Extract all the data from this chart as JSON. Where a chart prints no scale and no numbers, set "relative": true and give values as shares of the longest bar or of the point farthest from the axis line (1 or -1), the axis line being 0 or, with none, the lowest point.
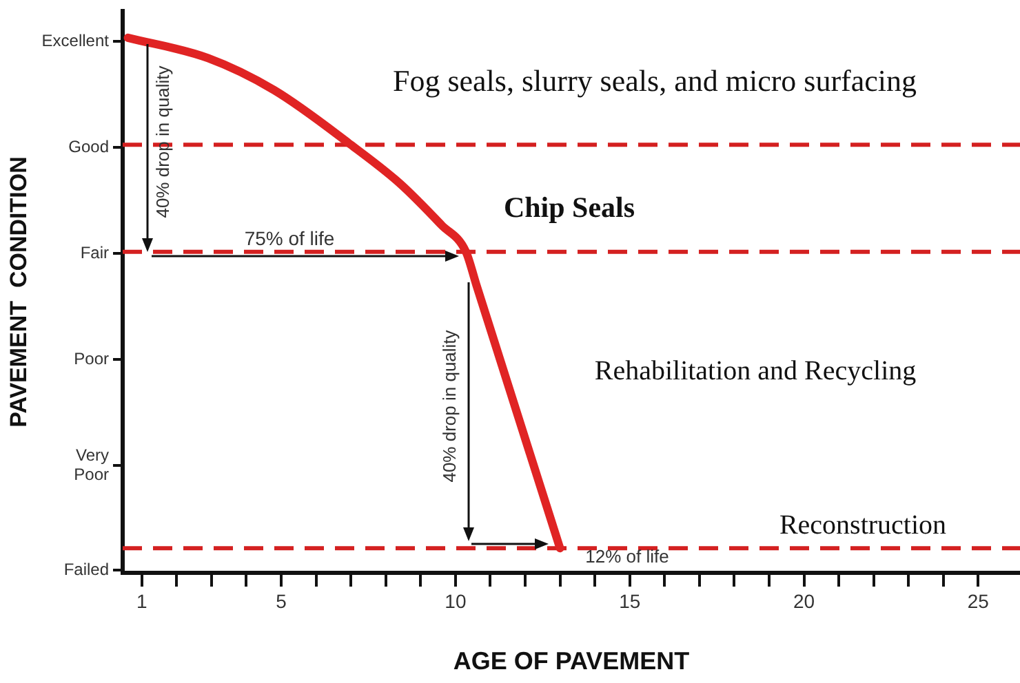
{
  "chart_data": {
    "type": "line",
    "xlabel": "AGE OF PAVEMENT",
    "ylabel": "PAVEMENT  CONDITION",
    "relative": true,
    "x": [
      0.6,
      2.9,
      4.8,
      7.0,
      8.4,
      9.6,
      10.3,
      10.6,
      13.0
    ],
    "series": [
      {
        "color": "#e02424",
        "values": [
          1,
          0.962,
          0.902,
          0.8,
          0.728,
          0.65,
          0.6,
          0.538,
          0.046
        ]
      }
    ],
    "xlim": [
      0.45,
      26.2
    ],
    "xticks": [
      1,
      {
        "value": 2,
        "label": null
      },
      {
        "value": 3,
        "label": null
      },
      {
        "value": 4,
        "label": null
      },
      5,
      {
        "value": 6,
        "label": null
      },
      {
        "value": 7,
        "label": null
      },
      {
        "value": 8,
        "label": null
      },
      {
        "value": 9,
        "label": null
      },
      10,
      {
        "value": 11,
        "label": null
      },
      {
        "value": 12,
        "label": null
      },
      {
        "value": 13,
        "label": null
      },
      {
        "value": 14,
        "label": null
      },
      15,
      {
        "value": 16,
        "label": null
      },
      {
        "value": 17,
        "label": null
      },
      {
        "value": 18,
        "label": null
      },
      {
        "value": 19,
        "label": null
      },
      20,
      {
        "value": 21,
        "label": null
      },
      {
        "value": 22,
        "label": null
      },
      {
        "value": 23,
        "label": null
      },
      {
        "value": 24,
        "label": null
      },
      25
    ],
    "ref_lines": [
      {
        "axis": "y",
        "value": 0.8,
        "color": "#d42020",
        "line_style": "dashed"
      },
      {
        "axis": "y",
        "value": 0.6,
        "color": "#d42020",
        "line_style": "dashed"
      },
      {
        "axis": "y",
        "value": 0.046,
        "color": "#d42020",
        "line_style": "dashed"
      }
    ],
    "annotations": [
      "Fog seals, slurry seals, and micro surfacing",
      "Chip Seals",
      "Rehabilitation and Recycling",
      "Reconstruction",
      "40% drop in quality",
      "75% of life",
      "40% drop in quality",
      "12% of life",
      "Excellent",
      "Good",
      "Fair",
      "Poor",
      "Very Poor",
      "Failed"
    ],
    "marker": "none",
    "line_style": "solid"
  }
}
